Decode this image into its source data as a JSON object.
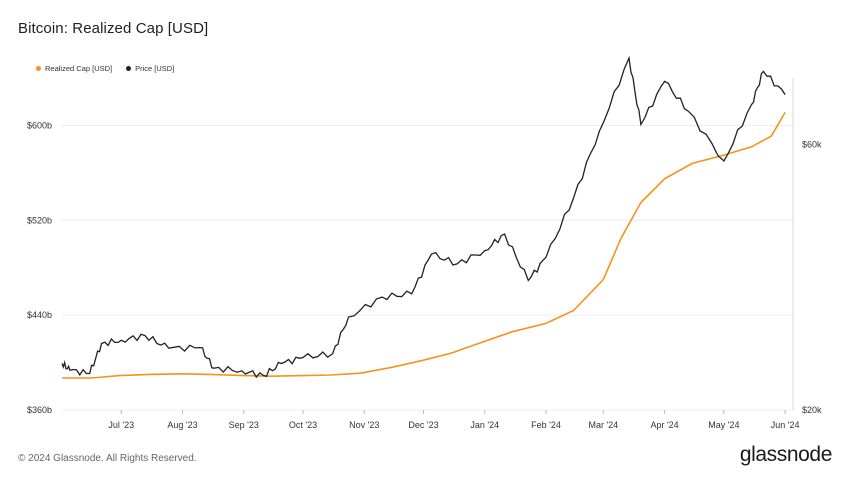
{
  "title": "Bitcoin: Realized Cap [USD]",
  "footer": "© 2024 Glassnode. All Rights Reserved.",
  "logo": "glassnode",
  "colors": {
    "realized_cap": "#f7931a",
    "price": "#222222",
    "grid": "#ececec"
  },
  "chart_data": {
    "type": "line",
    "legend_position": "top-left",
    "grid": true,
    "x_range": [
      "2023-06-01",
      "2024-06-05"
    ],
    "x_tick_labels": [
      "Jul '23",
      "Aug '23",
      "Sep '23",
      "Oct '23",
      "Nov '23",
      "Dec '23",
      "Jan '24",
      "Feb '24",
      "Mar '24",
      "Apr '24",
      "May '24",
      "Jun '24"
    ],
    "y_left": {
      "range": [
        360,
        640
      ],
      "ticks": [
        360,
        440,
        520,
        600
      ],
      "tick_labels": [
        "$360b",
        "$440b",
        "$520b",
        "$600b"
      ]
    },
    "y_right": {
      "range": [
        20,
        70
      ],
      "ticks": [
        20,
        60
      ],
      "tick_labels": [
        "$20k",
        "$60k"
      ]
    },
    "series": [
      {
        "name": "Realized Cap [USD]",
        "axis": "left",
        "points": [
          [
            "2023-06-01",
            387
          ],
          [
            "2023-06-16",
            387
          ],
          [
            "2023-06-30",
            389
          ],
          [
            "2023-07-15",
            390
          ],
          [
            "2023-08-01",
            390.5
          ],
          [
            "2023-08-15",
            390
          ],
          [
            "2023-09-01",
            389
          ],
          [
            "2023-09-15",
            388.5
          ],
          [
            "2023-10-01",
            389
          ],
          [
            "2023-10-15",
            389.5
          ],
          [
            "2023-10-30",
            391
          ],
          [
            "2023-11-15",
            396
          ],
          [
            "2023-12-01",
            402
          ],
          [
            "2023-12-15",
            408
          ],
          [
            "2024-01-01",
            418
          ],
          [
            "2024-01-15",
            426
          ],
          [
            "2024-02-01",
            433
          ],
          [
            "2024-02-15",
            444
          ],
          [
            "2024-03-01",
            470
          ],
          [
            "2024-03-10",
            505
          ],
          [
            "2024-03-20",
            535
          ],
          [
            "2024-04-01",
            555
          ],
          [
            "2024-04-15",
            568
          ],
          [
            "2024-05-01",
            575
          ],
          [
            "2024-05-15",
            582
          ],
          [
            "2024-05-25",
            591
          ],
          [
            "2024-06-01",
            611
          ]
        ]
      },
      {
        "name": "Price [USD]",
        "axis": "right",
        "points": [
          [
            "2023-06-01",
            27.0
          ],
          [
            "2023-06-05",
            26.0
          ],
          [
            "2023-06-15",
            25.5
          ],
          [
            "2023-06-21",
            30.0
          ],
          [
            "2023-07-01",
            30.5
          ],
          [
            "2023-07-13",
            31.2
          ],
          [
            "2023-07-25",
            29.3
          ],
          [
            "2023-08-10",
            29.4
          ],
          [
            "2023-08-17",
            26.3
          ],
          [
            "2023-08-31",
            25.9
          ],
          [
            "2023-09-11",
            25.2
          ],
          [
            "2023-09-20",
            27.0
          ],
          [
            "2023-10-01",
            27.9
          ],
          [
            "2023-10-16",
            28.5
          ],
          [
            "2023-10-24",
            34.0
          ],
          [
            "2023-11-10",
            37.0
          ],
          [
            "2023-11-25",
            37.5
          ],
          [
            "2023-12-05",
            43.5
          ],
          [
            "2023-12-18",
            42.0
          ],
          [
            "2024-01-01",
            44.0
          ],
          [
            "2024-01-11",
            46.5
          ],
          [
            "2024-01-23",
            39.5
          ],
          [
            "2024-02-01",
            43.0
          ],
          [
            "2024-02-15",
            52.0
          ],
          [
            "2024-02-28",
            62.0
          ],
          [
            "2024-03-14",
            73.0
          ],
          [
            "2024-03-20",
            63.0
          ],
          [
            "2024-04-01",
            69.5
          ],
          [
            "2024-04-13",
            65.0
          ],
          [
            "2024-05-01",
            57.5
          ],
          [
            "2024-05-15",
            66.0
          ],
          [
            "2024-05-21",
            71.0
          ],
          [
            "2024-06-01",
            67.5
          ]
        ]
      }
    ]
  }
}
